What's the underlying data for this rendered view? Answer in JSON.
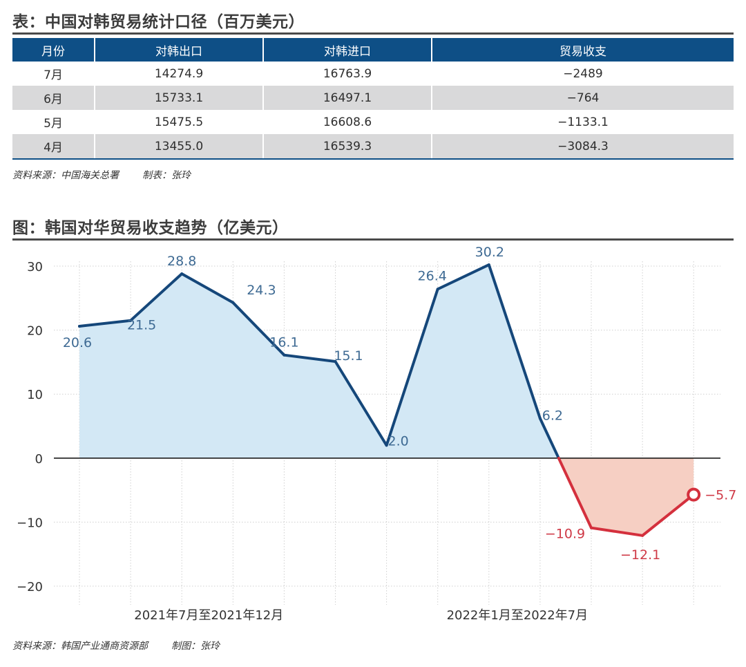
{
  "table_title": "表：中国对韩贸易统计口径（百万美元）",
  "table": {
    "headers": [
      "月份",
      "对韩出口",
      "对韩进口",
      "贸易收支"
    ],
    "rows": [
      [
        "7月",
        "14274.9",
        "16763.9",
        "−2489"
      ],
      [
        "6月",
        "15733.1",
        "16497.1",
        "−764"
      ],
      [
        "5月",
        "15475.5",
        "16608.6",
        "−1133.1"
      ],
      [
        "4月",
        "13455.0",
        "16539.3",
        "−3084.3"
      ]
    ]
  },
  "table_source": {
    "source": "资料来源：中国海关总署",
    "maker": "制表：张玲"
  },
  "chart_title": "图：韩国对华贸易收支趋势（亿美元）",
  "chart_source": {
    "source": "资料来源：韩国产业通商资源部",
    "maker": "制图：张玲"
  },
  "chart_data": {
    "type": "area",
    "title": "图：韩国对华贸易收支趋势（亿美元）",
    "x": [
      "2021-07",
      "2021-08",
      "2021-09",
      "2021-10",
      "2021-11",
      "2021-12",
      "2022-01",
      "2022-02",
      "2022-03",
      "2022-04",
      "2022-05",
      "2022-06",
      "2022-07"
    ],
    "values": [
      20.6,
      21.5,
      28.8,
      24.3,
      16.1,
      15.1,
      2.0,
      26.4,
      30.2,
      6.2,
      -10.9,
      -12.1,
      -5.7
    ],
    "data_labels": [
      "20.6",
      "21.5",
      "28.8",
      "24.3",
      "16.1",
      "15.1",
      "2.0",
      "26.4",
      "30.2",
      "6.2",
      "−10.9",
      "−12.1",
      "−5.7"
    ],
    "ylim": [
      -20,
      30
    ],
    "yticks": [
      30,
      20,
      10,
      0,
      -10,
      -20
    ],
    "ytick_labels": [
      "30",
      "20",
      "10",
      "0",
      "−10",
      "−20"
    ],
    "x_group_labels": [
      "2021年7月至2021年12月",
      "2022年1月至2022年7月"
    ],
    "grid": true,
    "colors": {
      "positive_line": "#15477a",
      "positive_fill": "#d3e8f5",
      "negative_line": "#d4303d",
      "negative_fill": "#f6cfc3",
      "positive_label": "#3e6a93",
      "negative_label": "#cf3a47"
    }
  }
}
